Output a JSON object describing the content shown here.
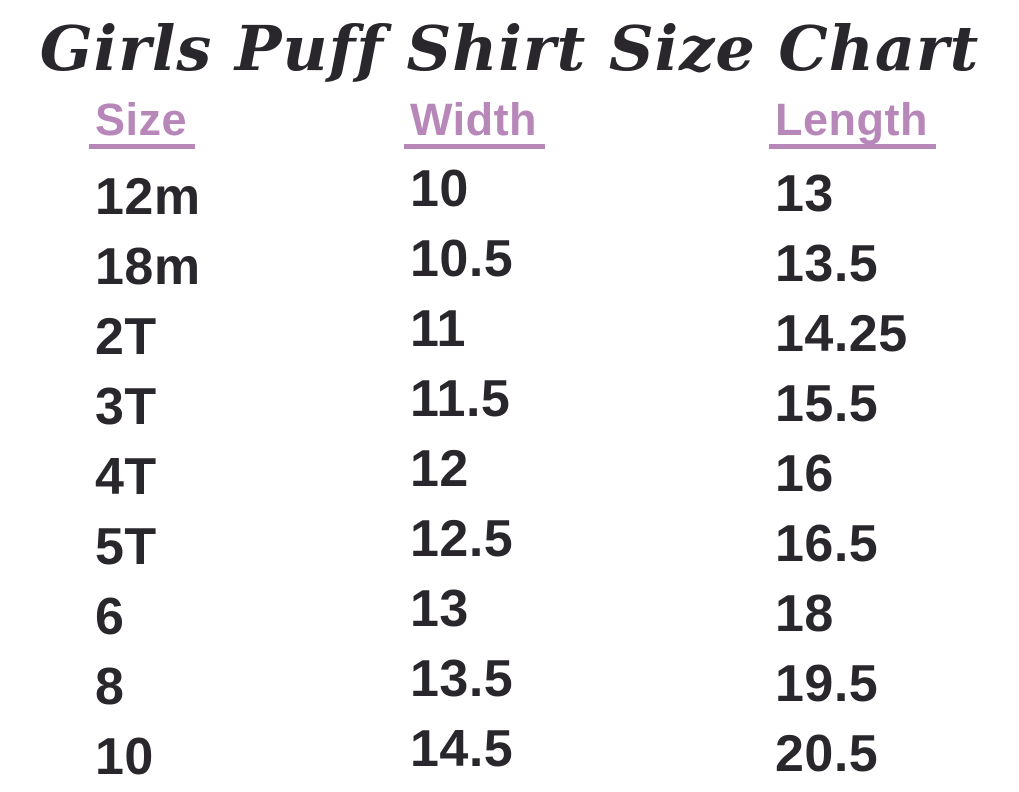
{
  "title": "Girls Puff Shirt Size Chart",
  "colors": {
    "background": "#ffffff",
    "title_text": "#29272b",
    "header_text": "#b687b8",
    "header_underline": "#b687b8",
    "cell_text": "#29272b"
  },
  "chart_data": {
    "type": "table",
    "title": "Girls Puff Shirt Size Chart",
    "columns": [
      "Size",
      "Width",
      "Length"
    ],
    "rows": [
      [
        "12m",
        "10",
        "13"
      ],
      [
        "18m",
        "10.5",
        "13.5"
      ],
      [
        "2T",
        "11",
        "14.25"
      ],
      [
        "3T",
        "11.5",
        "15.5"
      ],
      [
        "4T",
        "12",
        "16"
      ],
      [
        "5T",
        "12.5",
        "16.5"
      ],
      [
        "6",
        "13",
        "18"
      ],
      [
        "8",
        "13.5",
        "19.5"
      ],
      [
        "10",
        "14.5",
        "20.5"
      ]
    ],
    "layout": {
      "grid": false,
      "header_style": "underlined",
      "columns_alignment": "left"
    }
  }
}
